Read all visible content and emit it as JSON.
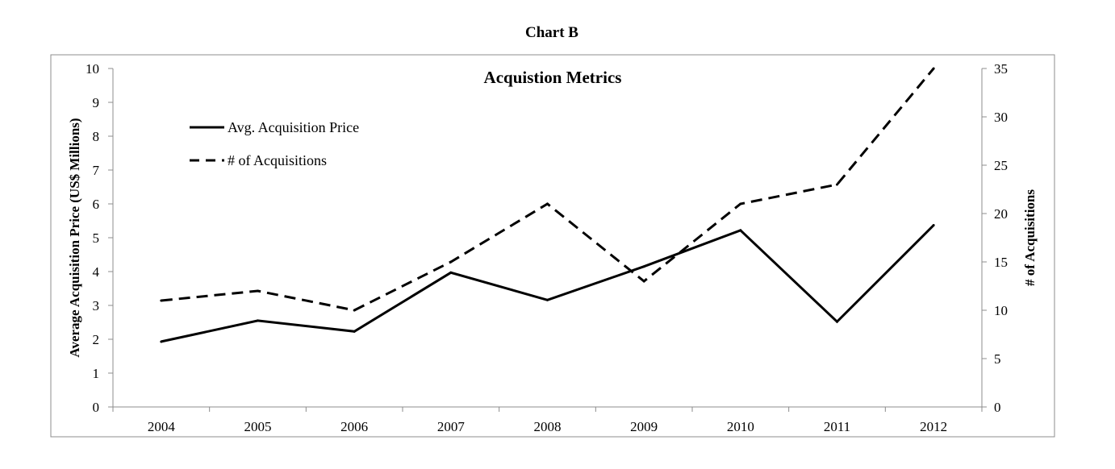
{
  "heading": "Chart B",
  "chart_data": {
    "type": "line",
    "title": "Acquistion Metrics",
    "categories": [
      "2004",
      "2005",
      "2006",
      "2007",
      "2008",
      "2009",
      "2010",
      "2011",
      "2012"
    ],
    "ylabel_left": "Average Acquisition Price (US$ Millions)",
    "ylabel_right": "# of Acquisitions",
    "xlabel": "",
    "ylim_left": [
      0,
      10
    ],
    "yticks_left": [
      0,
      1,
      2,
      3,
      4,
      5,
      6,
      7,
      8,
      9,
      10
    ],
    "ylim_right": [
      0,
      35
    ],
    "yticks_right": [
      0,
      5,
      10,
      15,
      20,
      25,
      30,
      35
    ],
    "grid": false,
    "legend_position": "top-left",
    "series": [
      {
        "name": "Avg. Acquisition Price",
        "axis": "left",
        "style": "solid",
        "color": "#000000",
        "values": [
          1.93,
          2.55,
          2.23,
          3.97,
          3.16,
          4.15,
          5.22,
          2.52,
          5.37
        ]
      },
      {
        "name": "# of Acquisitions",
        "axis": "right",
        "style": "dashed",
        "color": "#000000",
        "values": [
          11,
          12,
          10,
          15,
          21,
          13,
          21,
          23,
          35
        ]
      }
    ]
  }
}
